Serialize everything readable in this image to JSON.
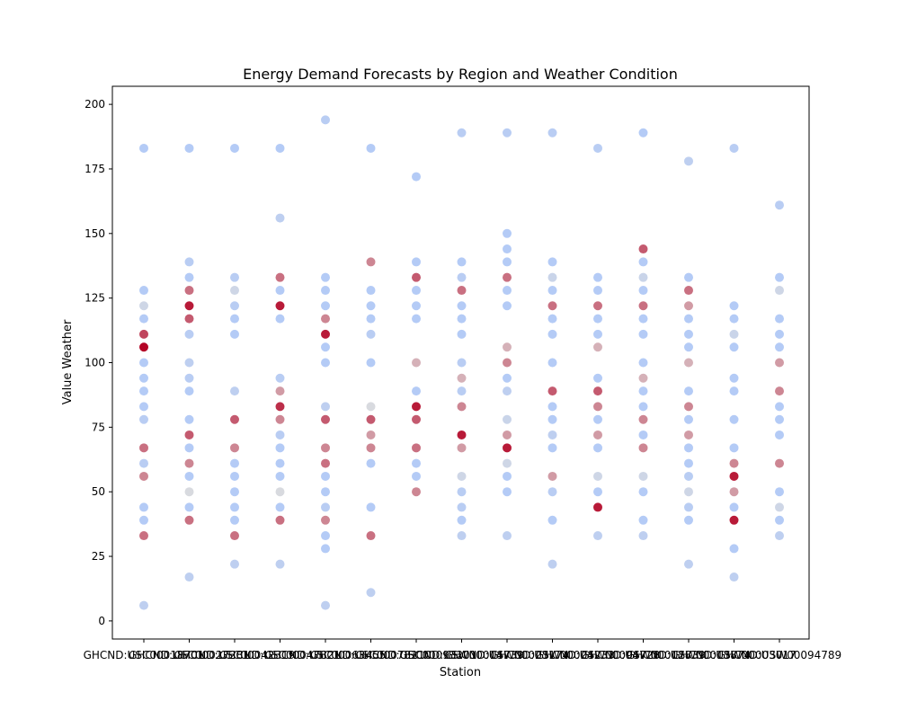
{
  "chart_data": {
    "type": "scatter",
    "title": "Energy Demand Forecasts by Region and Weather Condition",
    "xlabel": "Station",
    "ylabel": "Value Weather",
    "ylim": [
      -7,
      207
    ],
    "yticks": [
      0,
      25,
      50,
      75,
      100,
      125,
      150,
      175,
      200
    ],
    "grid": false,
    "legend": "none",
    "colormap": {
      "name": "coolwarm",
      "low": "#aac7fd",
      "mid": "#dddcdc",
      "high": "#b40426"
    },
    "categories": [
      "GHCND:USC00018701",
      "GHCND:USC00027281",
      "GHCND:USC00042319",
      "GHCND:USC00047821",
      "GHCND:USC00063455",
      "GHCND:USC00078210",
      "GHCND:USC00093201",
      "GHCND:USW00014739",
      "GHCND:USW00023174",
      "GHCND:USW00024233",
      "GHCND:USW00094728",
      "GHCND:USW00012839",
      "GHCND:USW00013874",
      "GHCND:USW00003017",
      "GHCND:USW00094789"
    ],
    "points": [
      [
        [
          183,
          0.1
        ],
        [
          128,
          0.1
        ],
        [
          122,
          0.35
        ],
        [
          117,
          0.1
        ],
        [
          111,
          0.85
        ],
        [
          106,
          1.0
        ],
        [
          100,
          0.1
        ],
        [
          94,
          0.1
        ],
        [
          89,
          0.1
        ],
        [
          83,
          0.1
        ],
        [
          78,
          0.15
        ],
        [
          67,
          0.75
        ],
        [
          61,
          0.15
        ],
        [
          56,
          0.7
        ],
        [
          44,
          0.1
        ],
        [
          39,
          0.1
        ],
        [
          33,
          0.75
        ],
        [
          6,
          0.2
        ]
      ],
      [
        [
          183,
          0.1
        ],
        [
          139,
          0.15
        ],
        [
          133,
          0.1
        ],
        [
          128,
          0.75
        ],
        [
          122,
          0.95
        ],
        [
          117,
          0.8
        ],
        [
          111,
          0.15
        ],
        [
          100,
          0.2
        ],
        [
          94,
          0.15
        ],
        [
          89,
          0.1
        ],
        [
          78,
          0.1
        ],
        [
          72,
          0.8
        ],
        [
          67,
          0.1
        ],
        [
          61,
          0.7
        ],
        [
          56,
          0.1
        ],
        [
          50,
          0.45
        ],
        [
          44,
          0.1
        ],
        [
          39,
          0.75
        ],
        [
          17,
          0.2
        ]
      ],
      [
        [
          183,
          0.1
        ],
        [
          133,
          0.15
        ],
        [
          128,
          0.35
        ],
        [
          122,
          0.15
        ],
        [
          117,
          0.1
        ],
        [
          111,
          0.1
        ],
        [
          89,
          0.2
        ],
        [
          78,
          0.8
        ],
        [
          67,
          0.7
        ],
        [
          61,
          0.1
        ],
        [
          56,
          0.1
        ],
        [
          50,
          0.1
        ],
        [
          44,
          0.1
        ],
        [
          39,
          0.1
        ],
        [
          33,
          0.75
        ],
        [
          22,
          0.2
        ]
      ],
      [
        [
          183,
          0.1
        ],
        [
          156,
          0.2
        ],
        [
          133,
          0.75
        ],
        [
          128,
          0.1
        ],
        [
          122,
          0.95
        ],
        [
          117,
          0.1
        ],
        [
          94,
          0.15
        ],
        [
          89,
          0.65
        ],
        [
          83,
          0.9
        ],
        [
          78,
          0.7
        ],
        [
          72,
          0.15
        ],
        [
          67,
          0.1
        ],
        [
          61,
          0.1
        ],
        [
          56,
          0.1
        ],
        [
          50,
          0.45
        ],
        [
          44,
          0.1
        ],
        [
          39,
          0.75
        ],
        [
          22,
          0.2
        ]
      ],
      [
        [
          194,
          0.15
        ],
        [
          133,
          0.1
        ],
        [
          128,
          0.1
        ],
        [
          122,
          0.1
        ],
        [
          117,
          0.7
        ],
        [
          111,
          0.95
        ],
        [
          106,
          0.1
        ],
        [
          100,
          0.1
        ],
        [
          83,
          0.2
        ],
        [
          78,
          0.8
        ],
        [
          67,
          0.7
        ],
        [
          61,
          0.75
        ],
        [
          56,
          0.1
        ],
        [
          50,
          0.1
        ],
        [
          44,
          0.15
        ],
        [
          39,
          0.7
        ],
        [
          33,
          0.1
        ],
        [
          28,
          0.1
        ],
        [
          6,
          0.2
        ]
      ],
      [
        [
          183,
          0.1
        ],
        [
          139,
          0.7
        ],
        [
          128,
          0.1
        ],
        [
          122,
          0.1
        ],
        [
          117,
          0.1
        ],
        [
          111,
          0.15
        ],
        [
          100,
          0.1
        ],
        [
          83,
          0.45
        ],
        [
          78,
          0.8
        ],
        [
          72,
          0.65
        ],
        [
          67,
          0.7
        ],
        [
          61,
          0.1
        ],
        [
          44,
          0.1
        ],
        [
          33,
          0.75
        ],
        [
          11,
          0.2
        ]
      ],
      [
        [
          172,
          0.1
        ],
        [
          139,
          0.1
        ],
        [
          133,
          0.8
        ],
        [
          128,
          0.1
        ],
        [
          122,
          0.1
        ],
        [
          117,
          0.1
        ],
        [
          100,
          0.6
        ],
        [
          89,
          0.1
        ],
        [
          83,
          0.95
        ],
        [
          78,
          0.8
        ],
        [
          67,
          0.75
        ],
        [
          61,
          0.1
        ],
        [
          56,
          0.1
        ],
        [
          50,
          0.7
        ]
      ],
      [
        [
          189,
          0.15
        ],
        [
          139,
          0.1
        ],
        [
          133,
          0.15
        ],
        [
          128,
          0.75
        ],
        [
          122,
          0.1
        ],
        [
          117,
          0.1
        ],
        [
          111,
          0.1
        ],
        [
          100,
          0.15
        ],
        [
          94,
          0.6
        ],
        [
          89,
          0.15
        ],
        [
          83,
          0.7
        ],
        [
          72,
          0.95
        ],
        [
          67,
          0.65
        ],
        [
          56,
          0.35
        ],
        [
          50,
          0.15
        ],
        [
          44,
          0.15
        ],
        [
          39,
          0.1
        ],
        [
          33,
          0.2
        ]
      ],
      [
        [
          189,
          0.15
        ],
        [
          150,
          0.1
        ],
        [
          144,
          0.1
        ],
        [
          139,
          0.1
        ],
        [
          133,
          0.75
        ],
        [
          128,
          0.1
        ],
        [
          122,
          0.1
        ],
        [
          106,
          0.6
        ],
        [
          100,
          0.7
        ],
        [
          94,
          0.1
        ],
        [
          89,
          0.2
        ],
        [
          78,
          0.3
        ],
        [
          72,
          0.65
        ],
        [
          67,
          0.95
        ],
        [
          61,
          0.35
        ],
        [
          56,
          0.1
        ],
        [
          50,
          0.1
        ],
        [
          33,
          0.2
        ]
      ],
      [
        [
          189,
          0.15
        ],
        [
          139,
          0.1
        ],
        [
          133,
          0.3
        ],
        [
          128,
          0.1
        ],
        [
          122,
          0.75
        ],
        [
          117,
          0.1
        ],
        [
          111,
          0.1
        ],
        [
          100,
          0.1
        ],
        [
          89,
          0.8
        ],
        [
          83,
          0.1
        ],
        [
          78,
          0.1
        ],
        [
          72,
          0.2
        ],
        [
          67,
          0.1
        ],
        [
          56,
          0.65
        ],
        [
          50,
          0.15
        ],
        [
          39,
          0.1
        ],
        [
          22,
          0.2
        ]
      ],
      [
        [
          183,
          0.15
        ],
        [
          133,
          0.1
        ],
        [
          128,
          0.1
        ],
        [
          122,
          0.75
        ],
        [
          117,
          0.1
        ],
        [
          111,
          0.1
        ],
        [
          106,
          0.6
        ],
        [
          94,
          0.1
        ],
        [
          89,
          0.8
        ],
        [
          83,
          0.7
        ],
        [
          78,
          0.1
        ],
        [
          72,
          0.65
        ],
        [
          67,
          0.1
        ],
        [
          56,
          0.35
        ],
        [
          50,
          0.1
        ],
        [
          44,
          0.95
        ],
        [
          33,
          0.2
        ]
      ],
      [
        [
          189,
          0.1
        ],
        [
          144,
          0.8
        ],
        [
          139,
          0.1
        ],
        [
          133,
          0.3
        ],
        [
          128,
          0.1
        ],
        [
          122,
          0.75
        ],
        [
          117,
          0.1
        ],
        [
          111,
          0.1
        ],
        [
          100,
          0.1
        ],
        [
          94,
          0.6
        ],
        [
          89,
          0.1
        ],
        [
          83,
          0.1
        ],
        [
          78,
          0.7
        ],
        [
          72,
          0.1
        ],
        [
          67,
          0.7
        ],
        [
          56,
          0.35
        ],
        [
          50,
          0.1
        ],
        [
          39,
          0.1
        ],
        [
          33,
          0.2
        ]
      ],
      [
        [
          178,
          0.2
        ],
        [
          133,
          0.1
        ],
        [
          128,
          0.75
        ],
        [
          122,
          0.65
        ],
        [
          117,
          0.1
        ],
        [
          111,
          0.1
        ],
        [
          106,
          0.1
        ],
        [
          100,
          0.6
        ],
        [
          89,
          0.1
        ],
        [
          83,
          0.7
        ],
        [
          78,
          0.1
        ],
        [
          72,
          0.65
        ],
        [
          67,
          0.1
        ],
        [
          61,
          0.1
        ],
        [
          56,
          0.15
        ],
        [
          50,
          0.35
        ],
        [
          44,
          0.15
        ],
        [
          39,
          0.1
        ],
        [
          22,
          0.2
        ]
      ],
      [
        [
          183,
          0.15
        ],
        [
          122,
          0.1
        ],
        [
          117,
          0.1
        ],
        [
          111,
          0.3
        ],
        [
          106,
          0.1
        ],
        [
          94,
          0.1
        ],
        [
          89,
          0.1
        ],
        [
          78,
          0.1
        ],
        [
          67,
          0.1
        ],
        [
          61,
          0.7
        ],
        [
          56,
          0.95
        ],
        [
          50,
          0.65
        ],
        [
          44,
          0.1
        ],
        [
          39,
          0.95
        ],
        [
          28,
          0.1
        ],
        [
          17,
          0.2
        ]
      ],
      [
        [
          161,
          0.15
        ],
        [
          133,
          0.1
        ],
        [
          128,
          0.35
        ],
        [
          117,
          0.1
        ],
        [
          111,
          0.1
        ],
        [
          106,
          0.1
        ],
        [
          100,
          0.65
        ],
        [
          89,
          0.7
        ],
        [
          83,
          0.1
        ],
        [
          78,
          0.1
        ],
        [
          72,
          0.1
        ],
        [
          61,
          0.7
        ],
        [
          50,
          0.1
        ],
        [
          44,
          0.35
        ],
        [
          39,
          0.1
        ],
        [
          33,
          0.2
        ]
      ]
    ]
  }
}
